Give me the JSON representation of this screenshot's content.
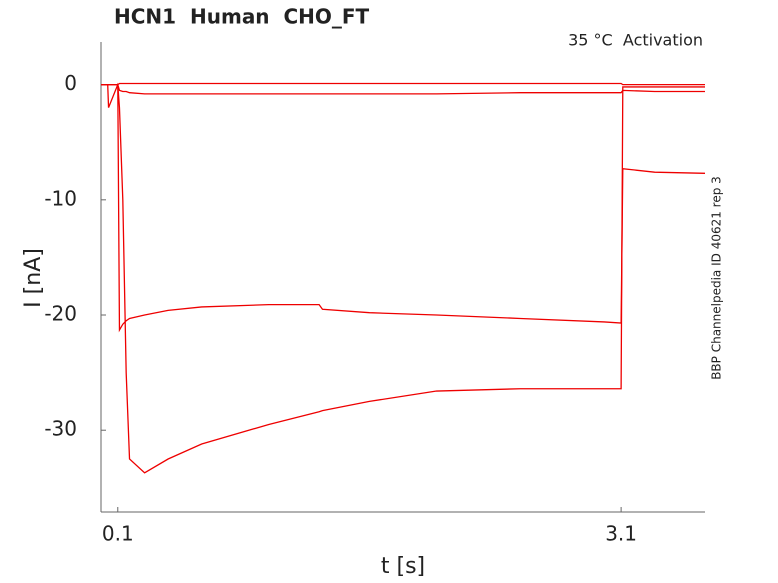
{
  "chart_data": {
    "type": "line",
    "title": "HCN1  Human  CHO_FT",
    "annotation": "35 °C  Activation",
    "side_note": "BBP Channelpedia ID 40621 rep 3",
    "xlabel": "t [s]",
    "ylabel": "I [nA]",
    "x": [
      0,
      0.04,
      0.045,
      0.1,
      0.11,
      0.13,
      0.15,
      0.17,
      0.26,
      0.4,
      0.6,
      1.0,
      1.3,
      1.32,
      1.6,
      2.0,
      2.5,
      3.0,
      3.1,
      3.11,
      3.3,
      3.6
    ],
    "series": [
      {
        "color": "#ee0000",
        "values": [
          0,
          0,
          0,
          0,
          -2,
          -10,
          -25,
          -32.5,
          -33.7,
          -32.5,
          -31.2,
          -29.5,
          -28.4,
          -28.3,
          -27.5,
          -26.6,
          -26.4,
          -26.4,
          -26.4,
          -0.2,
          -0.2,
          -0.2
        ]
      },
      {
        "color": "#ee0000",
        "values": [
          0,
          0,
          0,
          0,
          -21.3,
          -20.8,
          -20.5,
          -20.3,
          -20,
          -19.6,
          -19.3,
          -19.1,
          -19.1,
          -19.5,
          -19.8,
          -20,
          -20.3,
          -20.6,
          -20.7,
          -7.3,
          -7.6,
          -7.7
        ]
      },
      {
        "color": "#ee0000",
        "values": [
          0,
          0,
          -2,
          0,
          -0.5,
          -0.6,
          -0.6,
          -0.7,
          -0.8,
          -0.8,
          -0.8,
          -0.8,
          -0.8,
          -0.8,
          -0.8,
          -0.8,
          -0.7,
          -0.7,
          -0.7,
          -0.5,
          -0.6,
          -0.6
        ]
      },
      {
        "color": "#ee0000",
        "values": [
          0,
          0,
          0,
          0,
          0.1,
          0.1,
          0.1,
          0.1,
          0.1,
          0.1,
          0.1,
          0.1,
          0.1,
          0.1,
          0.1,
          0.1,
          0.1,
          0.1,
          0.1,
          0,
          0,
          0
        ]
      }
    ],
    "xlim": [
      0,
      3.6
    ],
    "ylim": [
      -37.1,
      3.7
    ],
    "xticks": [
      0.1,
      3.1
    ],
    "yticks": [
      0,
      -10,
      -20,
      -30
    ],
    "grid": false
  }
}
